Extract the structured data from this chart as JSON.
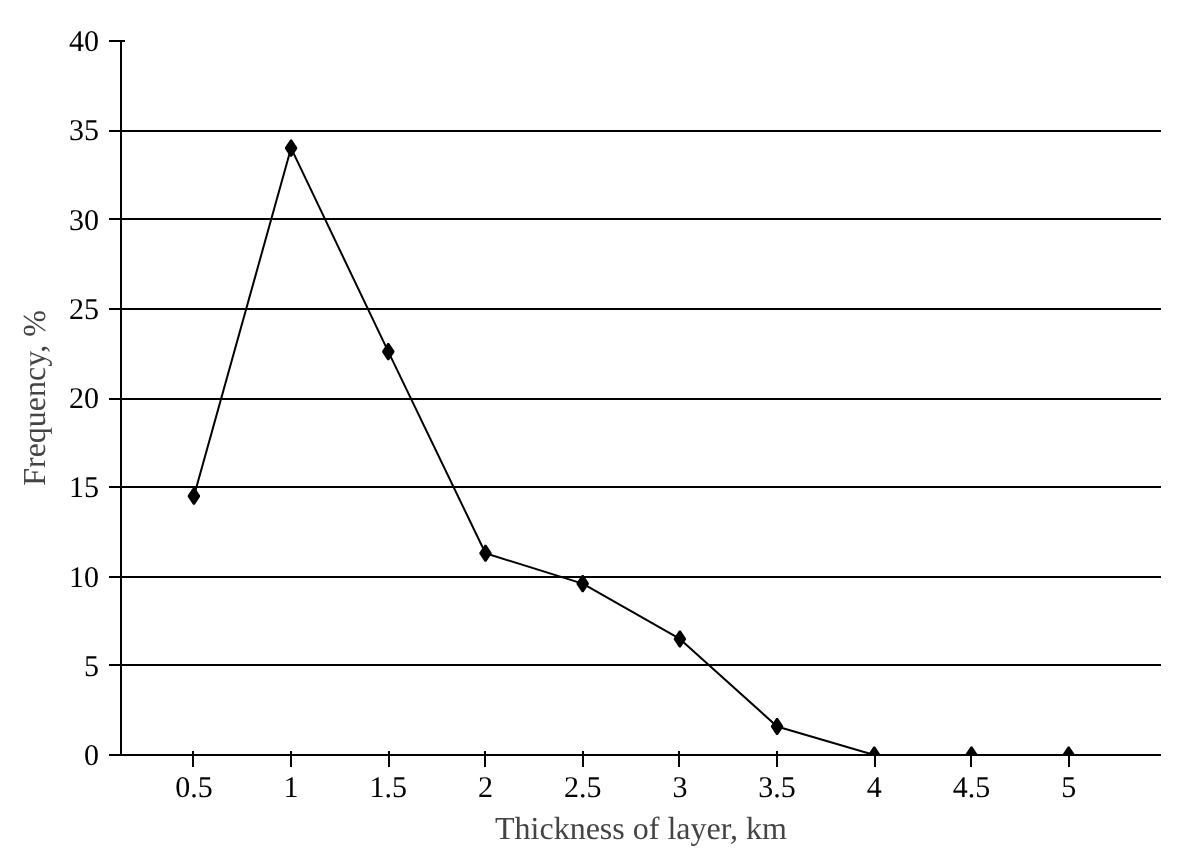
{
  "chart_data": {
    "type": "line",
    "xlabel": "Thickness of layer, km",
    "ylabel": "Frequency, %",
    "categories": [
      "0.5",
      "1",
      "1.5",
      "2",
      "2.5",
      "3",
      "3.5",
      "4",
      "4.5",
      "5"
    ],
    "series": [
      {
        "color": "#000000",
        "values": [
          14.5,
          34,
          22.6,
          11.3,
          9.6,
          6.5,
          1.6,
          0,
          0,
          0
        ]
      }
    ],
    "ylim": [
      0,
      40
    ],
    "yticks": [
      0,
      5,
      10,
      15,
      20,
      25,
      30,
      35,
      40
    ],
    "grid": "y",
    "marker": "diamond",
    "line_style": "solid"
  }
}
